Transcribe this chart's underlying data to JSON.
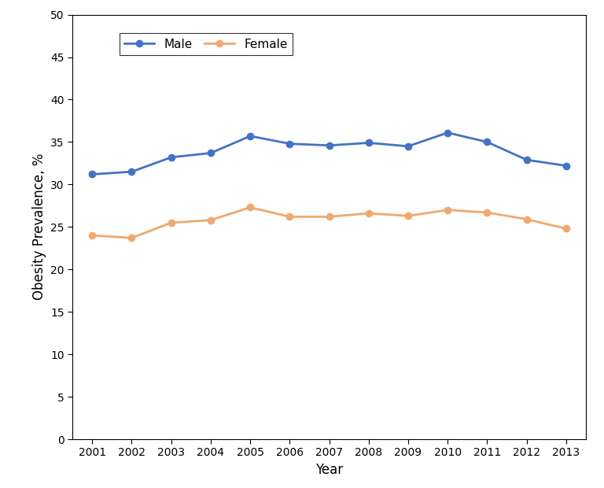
{
  "years": [
    2001,
    2002,
    2003,
    2004,
    2005,
    2006,
    2007,
    2008,
    2009,
    2010,
    2011,
    2012,
    2013
  ],
  "male": [
    31.2,
    31.5,
    33.2,
    33.7,
    35.7,
    34.8,
    34.6,
    34.9,
    34.5,
    36.1,
    35.0,
    32.9,
    32.2
  ],
  "female": [
    24.0,
    23.7,
    25.5,
    25.8,
    27.3,
    26.2,
    26.2,
    26.6,
    26.3,
    27.0,
    26.7,
    25.9,
    24.8
  ],
  "male_color": "#4472C4",
  "female_color": "#F0A86E",
  "male_label": "Male",
  "female_label": "Female",
  "xlabel": "Year",
  "ylabel": "Obesity Prevalence, %",
  "ylim": [
    0,
    50
  ],
  "yticks": [
    0,
    5,
    10,
    15,
    20,
    25,
    30,
    35,
    40,
    45,
    50
  ],
  "background_color": "#FFFFFF",
  "marker": "o",
  "marker_size": 6,
  "linewidth": 2.0,
  "legend_loc": "upper left",
  "legend_fontsize": 11,
  "axis_label_fontsize": 12,
  "tick_fontsize": 10
}
